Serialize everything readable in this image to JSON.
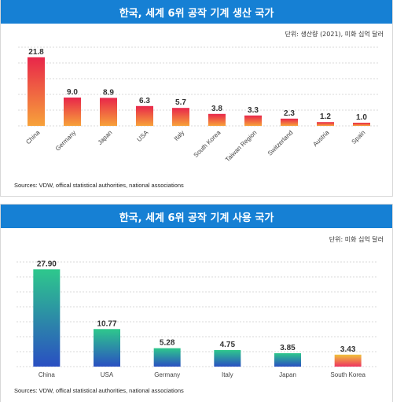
{
  "charts": [
    {
      "title": "한국, 세계 6위 공작 기계 생산 국가",
      "unit": "단위: 생산량 (2021), 미화 십억 달러",
      "source": "Sources: VDW, offical statistical authorities, national associations"
    },
    {
      "title": "한국, 세계 6위 공작 기계 사용 국가",
      "unit": "단위: 미화 십억 달러",
      "source": "Sources: VDW, offical statistical authorities, national associations"
    }
  ],
  "chart_data": [
    {
      "type": "bar",
      "title": "한국, 세계 6위 공작 기계 생산 국가",
      "ylabel": "단위: 생산량 (2021), 미화 십억 달러",
      "categories": [
        "China",
        "Germany",
        "Japan",
        "USA",
        "Italy",
        "South Korea",
        "Taiwan Region",
        "Switzerland",
        "Austria",
        "Spain"
      ],
      "values": [
        21.8,
        9.0,
        8.9,
        6.3,
        5.7,
        3.8,
        3.3,
        2.3,
        1.2,
        1.0
      ],
      "value_labels": [
        "21.8",
        "9.0",
        "8.9",
        "6.3",
        "5.7",
        "3.8",
        "3.3",
        "2.3",
        "1.2",
        "1.0"
      ],
      "ylim": [
        0,
        25
      ],
      "grid": true,
      "colors": {
        "top": "#e8264a",
        "bottom": "#f7a23a"
      }
    },
    {
      "type": "bar",
      "title": "한국, 세계 6위 공작 기계 사용 국가",
      "ylabel": "단위: 미화 십억 달러",
      "categories": [
        "China",
        "USA",
        "Germany",
        "Italy",
        "Japan",
        "South Korea"
      ],
      "values": [
        27.9,
        10.77,
        5.28,
        4.75,
        3.85,
        3.43
      ],
      "value_labels": [
        "27.90",
        "10.77",
        "5.28",
        "4.75",
        "3.85",
        "3.43"
      ],
      "ylim": [
        0,
        30
      ],
      "grid": true,
      "colors": {
        "top": "#2ec88c",
        "bottom": "#2a4fc2"
      },
      "highlight": {
        "category": "South Korea",
        "top": "#f0c33c",
        "bottom": "#ee3360"
      }
    }
  ]
}
